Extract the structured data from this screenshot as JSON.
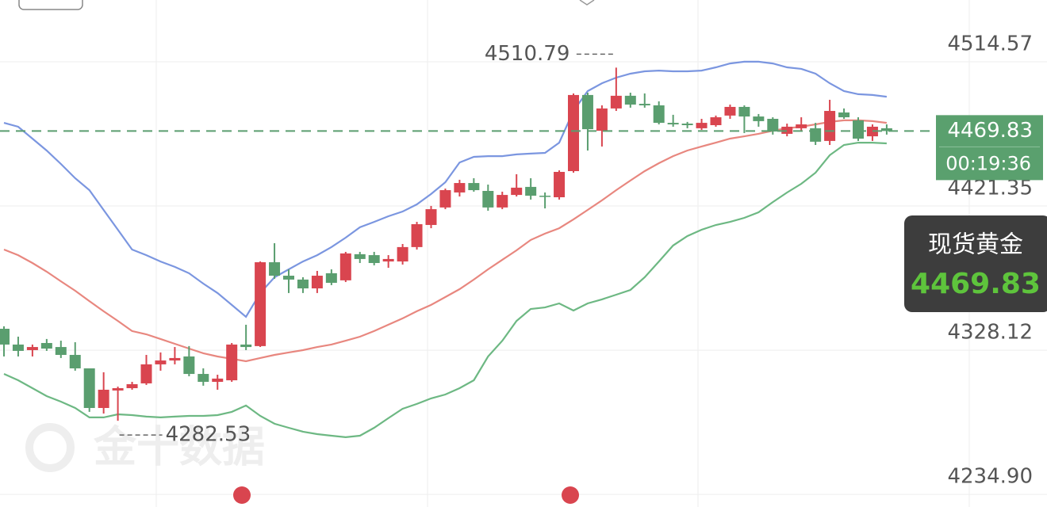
{
  "chart_data": {
    "type": "candlestick",
    "watermark": "金十数据",
    "instrument": "现货黄金",
    "countdown": "00:19:36",
    "up_color": "#d9454f",
    "down_color": "#5a9e6f",
    "ylim": [
      4226.8,
      4554.5
    ],
    "yticks": [
      4514.57,
      4421.35,
      4328.12,
      {
        "value": 4234.9,
        "label": "4234.90"
      }
    ],
    "grid": true,
    "open": [
      4342.0,
      4331.8,
      4328.2,
      4332.8,
      4330.2,
      4325.1,
      4316.4,
      4290.8,
      4302.1,
      4303.6,
      4306.7,
      4319.0,
      4321.5,
      4324.1,
      4312.8,
      4307.7,
      4308.7,
      4331.8,
      4330.8,
      4385.0,
      4376.3,
      4373.8,
      4368.1,
      4377.9,
      4373.3,
      4390.2,
      4389.6,
      4385.5,
      4385.5,
      4394.8,
      4409.1,
      4420.4,
      4430.1,
      4436.2,
      4431.1,
      4420.4,
      4428.5,
      4433.7,
      4428.0,
      4427.0,
      4443.9,
      4493.1,
      4470.0,
      4484.4,
      4492.6,
      4487.4,
      4486.4,
      4475.1,
      4474.6,
      4471.6,
      4473.6,
      4479.8,
      4485.4,
      4479.2,
      4477.7,
      4468.0,
      4471.6,
      4471.6,
      4463.4,
      4481.8,
      4476.7,
      4466.4,
      4471.6
    ],
    "high": [
      4343.6,
      4336.9,
      4331.8,
      4335.4,
      4334.3,
      4333.3,
      4316.4,
      4313.9,
      4304.6,
      4307.7,
      4325.1,
      4326.7,
      4330.2,
      4330.8,
      4316.4,
      4312.3,
      4332.8,
      4344.6,
      4385.5,
      4397.3,
      4380.4,
      4375.3,
      4379.4,
      4380.4,
      4391.7,
      4391.7,
      4391.7,
      4389.6,
      4396.8,
      4411.1,
      4421.4,
      4432.6,
      4438.3,
      4439.3,
      4435.2,
      4430.6,
      4441.9,
      4439.3,
      4430.1,
      4444.4,
      4494.1,
      4494.6,
      4486.4,
      4510.79,
      4494.6,
      4494.1,
      4489.0,
      4480.3,
      4475.7,
      4477.7,
      4479.8,
      4486.9,
      4486.4,
      4480.8,
      4478.7,
      4474.6,
      4478.7,
      4475.1,
      4490.0,
      4484.4,
      4478.7,
      4474.1,
      4474.1
    ],
    "low": [
      4324.1,
      4324.1,
      4324.1,
      4327.7,
      4323.1,
      4314.9,
      4288.3,
      4287.2,
      4282.53,
      4302.6,
      4305.7,
      4314.9,
      4319.0,
      4311.3,
      4305.2,
      4302.6,
      4307.7,
      4328.2,
      4330.2,
      4374.3,
      4365.1,
      4365.1,
      4365.1,
      4370.2,
      4372.2,
      4384.5,
      4383.0,
      4381.4,
      4383.5,
      4393.2,
      4407.0,
      4419.3,
      4427.5,
      4430.6,
      4418.3,
      4419.3,
      4427.5,
      4425.5,
      4419.8,
      4425.5,
      4442.9,
      4457.2,
      4459.8,
      4482.8,
      4484.9,
      4484.9,
      4474.1,
      4472.6,
      4471.6,
      4470.5,
      4472.6,
      4477.7,
      4468.5,
      4472.6,
      4467.5,
      4466.4,
      4470.0,
      4460.8,
      4460.8,
      4477.7,
      4463.4,
      4463.4,
      4467.5
    ],
    "close": [
      4331.8,
      4327.7,
      4330.2,
      4329.2,
      4325.1,
      4316.4,
      4290.8,
      4302.6,
      4303.6,
      4306.2,
      4319.0,
      4321.5,
      4323.1,
      4312.8,
      4307.7,
      4309.8,
      4331.8,
      4330.2,
      4385.0,
      4376.3,
      4373.8,
      4368.1,
      4376.3,
      4371.7,
      4390.7,
      4387.1,
      4384.5,
      4387.1,
      4394.8,
      4409.6,
      4419.3,
      4431.6,
      4436.2,
      4431.6,
      4420.4,
      4428.5,
      4433.2,
      4428.0,
      4427.5,
      4443.4,
      4493.1,
      4471.0,
      4484.4,
      4492.6,
      4486.9,
      4486.4,
      4475.1,
      4474.1,
      4473.6,
      4475.1,
      4478.7,
      4485.4,
      4479.2,
      4476.2,
      4469.5,
      4472.6,
      4474.1,
      4462.9,
      4482.8,
      4478.7,
      4464.9,
      4472.6,
      4469.83
    ],
    "lines": [
      {
        "color": "#7b96e0",
        "values": [
          4475.1,
          4472.6,
          4464.9,
          4457.2,
          4448.5,
          4439.3,
          4431.6,
          4418.8,
          4406.0,
          4393.2,
          4389.6,
          4385.5,
          4382.0,
          4377.9,
          4371.2,
          4365.1,
          4357.4,
          4349.7,
          4365.1,
          4375.3,
          4380.4,
          4385.5,
          4389.6,
          4394.8,
          4400.9,
          4407.6,
          4411.1,
          4414.7,
          4417.8,
          4422.4,
          4429.1,
          4436.7,
          4449.5,
          4453.1,
          4453.6,
          4453.6,
          4454.7,
          4455.2,
          4455.7,
          4462.3,
          4482.8,
          4495.6,
          4500.7,
          4504.3,
          4506.9,
          4508.4,
          4508.9,
          4508.4,
          4508.4,
          4508.9,
          4511.0,
          4513.5,
          4514.6,
          4514.6,
          4513.5,
          4511.0,
          4510.0,
          4506.9,
          4500.7,
          4495.6,
          4493.6,
          4493.1,
          4492.0
        ]
      },
      {
        "color": "#e8877f",
        "values": [
          4393.2,
          4389.6,
          4384.5,
          4378.9,
          4372.7,
          4366.6,
          4359.9,
          4353.3,
          4347.1,
          4340.5,
          4338.4,
          4335.4,
          4332.3,
          4329.2,
          4326.2,
          4324.1,
          4322.6,
          4321.0,
          4323.1,
          4325.1,
          4326.7,
          4328.2,
          4330.2,
          4331.8,
          4334.3,
          4336.9,
          4340.5,
          4344.6,
          4348.7,
          4353.3,
          4357.4,
          4362.5,
          4367.6,
          4373.8,
          4380.4,
          4386.6,
          4392.7,
          4399.4,
          4403.5,
          4407.0,
          4412.7,
          4418.8,
          4425.0,
          4431.6,
          4437.8,
          4443.9,
          4449.0,
          4453.6,
          4457.2,
          4459.8,
          4462.3,
          4464.9,
          4466.4,
          4468.0,
          4470.0,
          4471.6,
          4472.6,
          4474.1,
          4475.7,
          4476.7,
          4476.7,
          4476.2,
          4475.1
        ]
      },
      {
        "color": "#6db883",
        "values": [
          4312.8,
          4308.7,
          4303.6,
          4298.5,
          4294.9,
          4290.8,
          4284.7,
          4284.7,
          4286.7,
          4286.2,
          4285.2,
          4284.7,
          4285.2,
          4285.7,
          4285.7,
          4286.2,
          4288.3,
          4292.4,
          4285.7,
          4280.6,
          4278.0,
          4275.5,
          4273.9,
          4272.9,
          4271.9,
          4272.9,
          4278.0,
          4284.2,
          4290.3,
          4293.4,
          4297.0,
          4299.5,
          4303.6,
          4308.7,
          4324.1,
          4334.3,
          4347.1,
          4354.8,
          4355.8,
          4358.4,
          4353.8,
          4358.4,
          4361.0,
          4364.0,
          4367.1,
          4375.3,
          4385.5,
          4395.8,
          4401.9,
          4406.0,
          4409.1,
          4411.1,
          4413.7,
          4417.3,
          4423.9,
          4430.1,
          4435.7,
          4442.9,
          4454.2,
          4460.8,
          4462.3,
          4462.3,
          4461.8
        ]
      }
    ]
  }
}
